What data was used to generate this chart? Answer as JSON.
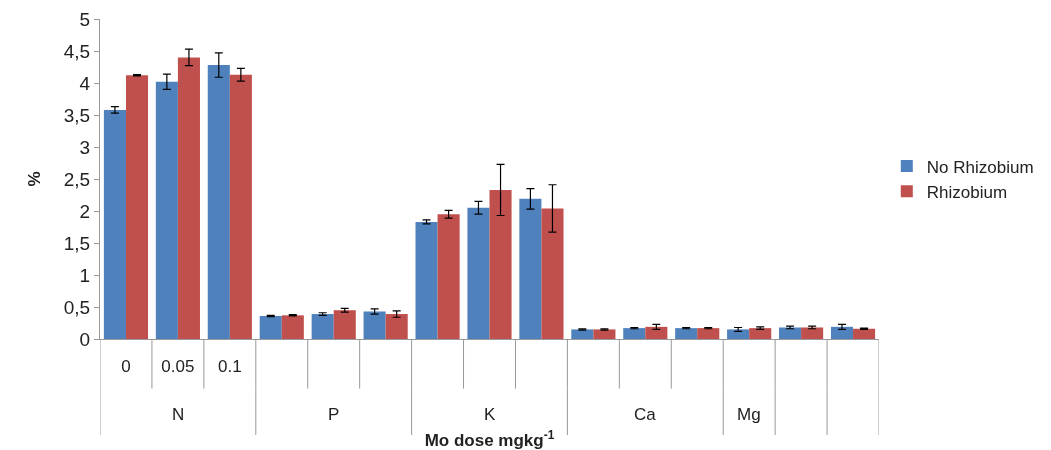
{
  "chart_data": {
    "type": "bar",
    "xlabel": "Mo dose mgkg$^{-1}$",
    "ylabel": "%",
    "categories": [
      "0",
      "0.05",
      "0.1",
      null,
      null,
      null,
      null,
      null,
      null,
      null,
      null,
      null,
      null,
      null,
      null
    ],
    "annotations": [
      "N",
      "P",
      "K",
      "Ca",
      "Mg"
    ],
    "series": [
      {
        "name": "No Rhizobium",
        "color": "#4f81bd",
        "values": [
          3.58,
          4.02,
          4.28,
          0.36,
          0.39,
          0.43,
          1.83,
          2.05,
          2.19,
          0.15,
          0.17,
          0.17,
          0.15,
          0.18,
          0.19
        ],
        "errors": [
          0.05,
          0.12,
          0.19,
          0.01,
          0.02,
          0.04,
          0.03,
          0.1,
          0.16,
          0.01,
          0.01,
          0.01,
          0.03,
          0.02,
          0.04
        ]
      },
      {
        "name": "Rhizobium",
        "color": "#c0504d",
        "values": [
          4.12,
          4.4,
          4.13,
          0.37,
          0.45,
          0.39,
          1.95,
          2.33,
          2.04,
          0.15,
          0.19,
          0.17,
          0.17,
          0.18,
          0.16
        ],
        "errors": [
          0.01,
          0.13,
          0.1,
          0.01,
          0.03,
          0.05,
          0.06,
          0.4,
          0.37,
          0.01,
          0.04,
          0.01,
          0.02,
          0.02,
          0.01
        ]
      }
    ],
    "ylim": [
      0,
      5
    ],
    "yticks": [
      0,
      {
        "value": 0.5,
        "label": "0,5"
      },
      1,
      {
        "value": 1.5,
        "label": "1,5"
      },
      2,
      {
        "value": 2.5,
        "label": "2,5"
      },
      3,
      {
        "value": 3.5,
        "label": "3,5"
      },
      4,
      {
        "value": 4.5,
        "label": "4,5"
      },
      5
    ],
    "grid": false,
    "legend": "right"
  }
}
